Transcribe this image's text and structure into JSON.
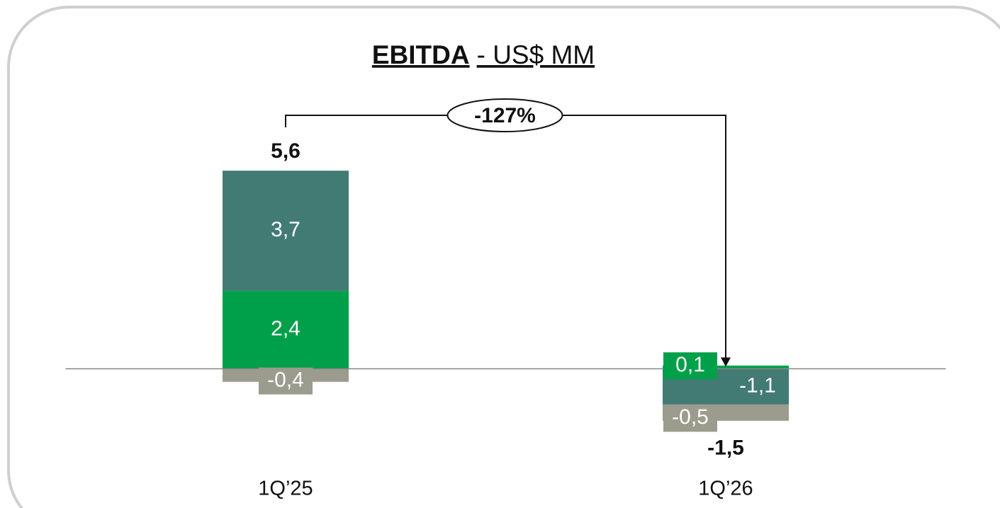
{
  "chart_data": {
    "type": "bar",
    "stacked": true,
    "title": "EBITDA",
    "subtitle": "- US$ MM",
    "categories": [
      "1Q’25",
      "1Q’26"
    ],
    "series": [
      {
        "color": "#00a04a",
        "values": [
          2.4,
          0.1
        ],
        "value_labels": [
          "2,4",
          "0,1"
        ]
      },
      {
        "color": "#427a74",
        "values": [
          3.7,
          -1.1
        ],
        "value_labels": [
          "3,7",
          "-1,1"
        ]
      },
      {
        "color": "#9c9c8e",
        "values": [
          -0.4,
          -0.5
        ],
        "value_labels": [
          "-0,4",
          "-0,5"
        ]
      }
    ],
    "totals": {
      "values": [
        5.6,
        -1.5
      ],
      "value_labels": [
        "5,6",
        "-1,5"
      ]
    },
    "annotation": "-127%",
    "ylim": [
      -3.5,
      8
    ]
  }
}
